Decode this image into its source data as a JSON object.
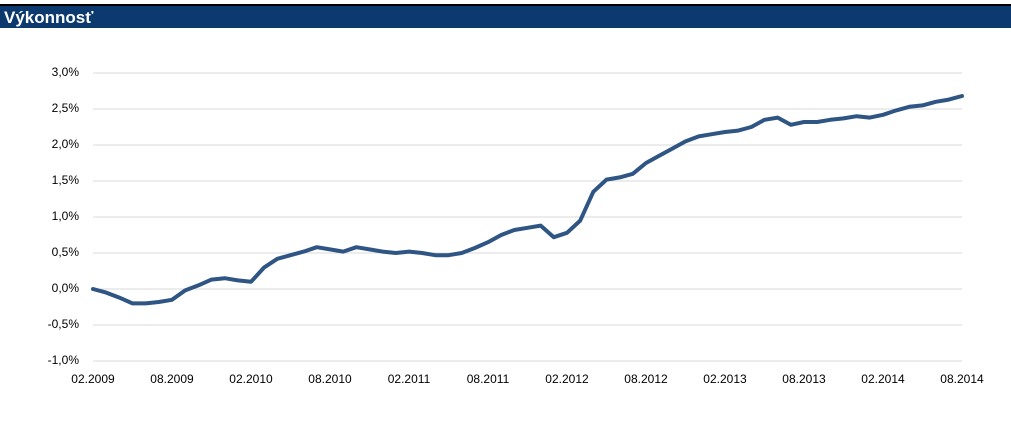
{
  "header": {
    "title": "Výkonnosť"
  },
  "chart_data": {
    "type": "line",
    "color": "#2f5584",
    "grid": true,
    "categories": [
      "02.2009",
      null,
      null,
      null,
      null,
      null,
      "08.2009",
      null,
      null,
      null,
      null,
      null,
      "02.2010",
      null,
      null,
      null,
      null,
      null,
      "08.2010",
      null,
      null,
      null,
      null,
      null,
      "02.2011",
      null,
      null,
      null,
      null,
      null,
      "08.2011",
      null,
      null,
      null,
      null,
      null,
      "02.2012",
      null,
      null,
      null,
      null,
      null,
      "08.2012",
      null,
      null,
      null,
      null,
      null,
      "02.2013",
      null,
      null,
      null,
      null,
      null,
      "08.2013",
      null,
      null,
      null,
      null,
      null,
      "02.2014",
      null,
      null,
      null,
      null,
      null,
      "08.2014"
    ],
    "values": [
      0.0,
      -0.05,
      -0.12,
      -0.2,
      -0.2,
      -0.18,
      -0.15,
      -0.02,
      0.05,
      0.13,
      0.15,
      0.12,
      0.1,
      0.3,
      0.42,
      0.47,
      0.52,
      0.58,
      0.55,
      0.52,
      0.58,
      0.55,
      0.52,
      0.5,
      0.52,
      0.5,
      0.47,
      0.47,
      0.5,
      0.57,
      0.65,
      0.75,
      0.82,
      0.85,
      0.88,
      0.72,
      0.78,
      0.95,
      1.35,
      1.52,
      1.55,
      1.6,
      1.75,
      1.85,
      1.95,
      2.05,
      2.12,
      2.15,
      2.18,
      2.2,
      2.25,
      2.35,
      2.38,
      2.28,
      2.32,
      2.32,
      2.35,
      2.37,
      2.4,
      2.38,
      2.42,
      2.48,
      2.53,
      2.55,
      2.6,
      2.63,
      2.68
    ],
    "ylim": [
      -1.0,
      3.0
    ],
    "yticks": [
      {
        "value": -1.0,
        "label": "-1,0%"
      },
      {
        "value": -0.5,
        "label": "-0,5%"
      },
      {
        "value": 0.0,
        "label": "0,0%"
      },
      {
        "value": 0.5,
        "label": "0,5%"
      },
      {
        "value": 1.0,
        "label": "1,0%"
      },
      {
        "value": 1.5,
        "label": "1,5%"
      },
      {
        "value": 2.0,
        "label": "2,0%"
      },
      {
        "value": 2.5,
        "label": "2,5%"
      },
      {
        "value": 3.0,
        "label": "3,0%"
      }
    ]
  }
}
